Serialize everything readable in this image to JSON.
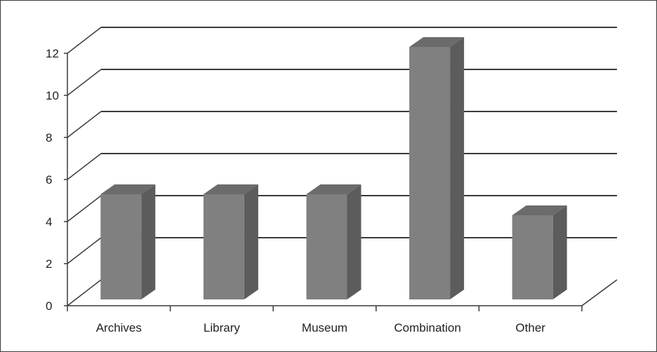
{
  "chart_data": {
    "type": "bar",
    "style": "3d-column",
    "categories": [
      "Archives",
      "Library",
      "Museum",
      "Combination",
      "Other"
    ],
    "values": [
      5,
      5,
      5,
      12,
      4
    ],
    "ylim": [
      0,
      12
    ],
    "yticks": [
      "0",
      "2",
      "4",
      "6",
      "8",
      "10",
      "12"
    ],
    "grid": true,
    "legend": "none",
    "colors": {
      "bar_front": "#808080",
      "bar_side": "#5c5c5c",
      "bar_top": "#6b6b6b",
      "gridline": "#3a3a3a"
    }
  }
}
